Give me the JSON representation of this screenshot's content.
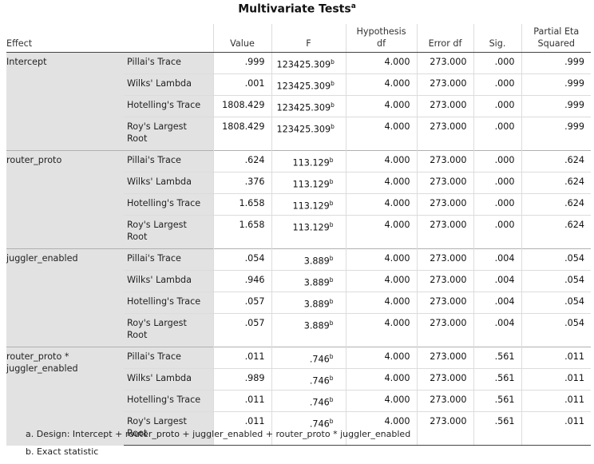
{
  "title": "Multivariate Tests",
  "title_marker": "a",
  "headers": {
    "effect": "Effect",
    "value": "Value",
    "f": "F",
    "hyp_df_1": "Hypothesis",
    "hyp_df_2": "df",
    "error_df": "Error df",
    "sig": "Sig.",
    "eta_1": "Partial Eta",
    "eta_2": "Squared"
  },
  "groups": [
    {
      "effect_lines": [
        "Intercept"
      ],
      "rows": [
        {
          "stat": [
            "Pillai's Trace"
          ],
          "value": ".999",
          "f": "123425.309",
          "f_sup": "b",
          "hyp_df": "4.000",
          "error_df": "273.000",
          "sig": ".000",
          "eta": ".999"
        },
        {
          "stat": [
            "Wilks' Lambda"
          ],
          "value": ".001",
          "f": "123425.309",
          "f_sup": "b",
          "hyp_df": "4.000",
          "error_df": "273.000",
          "sig": ".000",
          "eta": ".999"
        },
        {
          "stat": [
            "Hotelling's Trace"
          ],
          "value": "1808.429",
          "f": "123425.309",
          "f_sup": "b",
          "hyp_df": "4.000",
          "error_df": "273.000",
          "sig": ".000",
          "eta": ".999"
        },
        {
          "stat": [
            "Roy's Largest",
            "Root"
          ],
          "value": "1808.429",
          "f": "123425.309",
          "f_sup": "b",
          "hyp_df": "4.000",
          "error_df": "273.000",
          "sig": ".000",
          "eta": ".999"
        }
      ]
    },
    {
      "effect_lines": [
        "router_proto"
      ],
      "rows": [
        {
          "stat": [
            "Pillai's Trace"
          ],
          "value": ".624",
          "f": "113.129",
          "f_sup": "b",
          "hyp_df": "4.000",
          "error_df": "273.000",
          "sig": ".000",
          "eta": ".624"
        },
        {
          "stat": [
            "Wilks' Lambda"
          ],
          "value": ".376",
          "f": "113.129",
          "f_sup": "b",
          "hyp_df": "4.000",
          "error_df": "273.000",
          "sig": ".000",
          "eta": ".624"
        },
        {
          "stat": [
            "Hotelling's Trace"
          ],
          "value": "1.658",
          "f": "113.129",
          "f_sup": "b",
          "hyp_df": "4.000",
          "error_df": "273.000",
          "sig": ".000",
          "eta": ".624"
        },
        {
          "stat": [
            "Roy's Largest",
            "Root"
          ],
          "value": "1.658",
          "f": "113.129",
          "f_sup": "b",
          "hyp_df": "4.000",
          "error_df": "273.000",
          "sig": ".000",
          "eta": ".624"
        }
      ]
    },
    {
      "effect_lines": [
        "juggler_enabled"
      ],
      "rows": [
        {
          "stat": [
            "Pillai's Trace"
          ],
          "value": ".054",
          "f": "3.889",
          "f_sup": "b",
          "hyp_df": "4.000",
          "error_df": "273.000",
          "sig": ".004",
          "eta": ".054"
        },
        {
          "stat": [
            "Wilks' Lambda"
          ],
          "value": ".946",
          "f": "3.889",
          "f_sup": "b",
          "hyp_df": "4.000",
          "error_df": "273.000",
          "sig": ".004",
          "eta": ".054"
        },
        {
          "stat": [
            "Hotelling's Trace"
          ],
          "value": ".057",
          "f": "3.889",
          "f_sup": "b",
          "hyp_df": "4.000",
          "error_df": "273.000",
          "sig": ".004",
          "eta": ".054"
        },
        {
          "stat": [
            "Roy's Largest",
            "Root"
          ],
          "value": ".057",
          "f": "3.889",
          "f_sup": "b",
          "hyp_df": "4.000",
          "error_df": "273.000",
          "sig": ".004",
          "eta": ".054"
        }
      ]
    },
    {
      "effect_lines": [
        "router_proto *",
        "juggler_enabled"
      ],
      "rows": [
        {
          "stat": [
            "Pillai's Trace"
          ],
          "value": ".011",
          "f": ".746",
          "f_sup": "b",
          "hyp_df": "4.000",
          "error_df": "273.000",
          "sig": ".561",
          "eta": ".011"
        },
        {
          "stat": [
            "Wilks' Lambda"
          ],
          "value": ".989",
          "f": ".746",
          "f_sup": "b",
          "hyp_df": "4.000",
          "error_df": "273.000",
          "sig": ".561",
          "eta": ".011"
        },
        {
          "stat": [
            "Hotelling's Trace"
          ],
          "value": ".011",
          "f": ".746",
          "f_sup": "b",
          "hyp_df": "4.000",
          "error_df": "273.000",
          "sig": ".561",
          "eta": ".011"
        },
        {
          "stat": [
            "Roy's Largest",
            "Root"
          ],
          "value": ".011",
          "f": ".746",
          "f_sup": "b",
          "hyp_df": "4.000",
          "error_df": "273.000",
          "sig": ".561",
          "eta": ".011"
        }
      ]
    }
  ],
  "footnotes": [
    "a. Design: Intercept + router_proto + juggler_enabled + router_proto * juggler_enabled",
    "b. Exact statistic"
  ],
  "colors": {
    "label_shading": "#e2e2e2",
    "header_rule": "#444444"
  }
}
